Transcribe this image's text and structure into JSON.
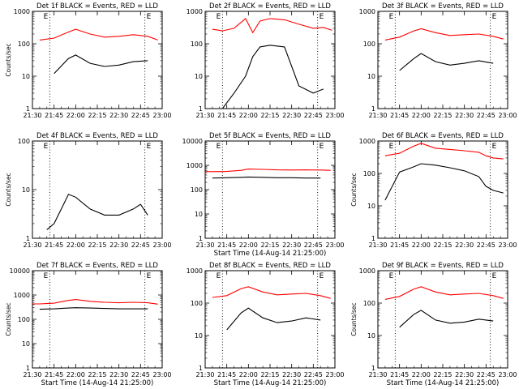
{
  "figure": {
    "x_tick_labels": [
      "21:30",
      "21:45",
      "22:00",
      "22:15",
      "22:30",
      "22:45",
      "23:00"
    ],
    "series_colors": {
      "events": "#000000",
      "lld": "#ff0000"
    },
    "marker": "E"
  },
  "chart_data": [
    {
      "type": "line",
      "title": "Det 1f BLACK = Events, RED = LLD",
      "xlabel": "",
      "ylabel": "Counts/sec",
      "y_scale": "log",
      "ylim": [
        1,
        1000
      ],
      "y_tick_labels": [
        "1",
        "10",
        "100",
        "1000"
      ],
      "xlim": [
        "21:30",
        "23:00"
      ],
      "x": [
        "21:35",
        "21:45",
        "21:55",
        "22:00",
        "22:10",
        "22:20",
        "22:30",
        "22:40",
        "22:50",
        "22:57"
      ],
      "series": [
        {
          "color": "#ff0000",
          "values": [
            130,
            150,
            230,
            280,
            200,
            160,
            170,
            190,
            170,
            130
          ]
        },
        {
          "color": "#000000",
          "values": [
            null,
            12,
            35,
            45,
            25,
            20,
            22,
            28,
            30,
            null
          ]
        }
      ],
      "markers": [
        "21:42",
        "22:48"
      ]
    },
    {
      "type": "line",
      "title": "Det 2f BLACK = Events, RED = LLD",
      "xlabel": "",
      "ylabel": "",
      "y_scale": "log",
      "ylim": [
        1,
        1000
      ],
      "y_tick_labels": [
        "1",
        "10",
        "100",
        "1000"
      ],
      "xlim": [
        "21:30",
        "23:00"
      ],
      "x": [
        "21:35",
        "21:42",
        "21:50",
        "21:58",
        "22:03",
        "22:08",
        "22:15",
        "22:25",
        "22:35",
        "22:45",
        "22:52",
        "22:58"
      ],
      "series": [
        {
          "color": "#ff0000",
          "values": [
            280,
            250,
            300,
            600,
            220,
            500,
            600,
            550,
            400,
            300,
            320,
            260
          ]
        },
        {
          "color": "#000000",
          "values": [
            null,
            1,
            3,
            10,
            40,
            80,
            90,
            80,
            5,
            3,
            4,
            null
          ]
        }
      ],
      "markers": [
        "21:42",
        "22:48"
      ]
    },
    {
      "type": "line",
      "title": "Det 3f BLACK = Events, RED = LLD",
      "xlabel": "",
      "ylabel": "",
      "y_scale": "log",
      "ylim": [
        1,
        1000
      ],
      "y_tick_labels": [
        "1",
        "10",
        "100",
        "1000"
      ],
      "xlim": [
        "21:30",
        "23:00"
      ],
      "x": [
        "21:35",
        "21:45",
        "21:55",
        "22:00",
        "22:10",
        "22:20",
        "22:30",
        "22:40",
        "22:50",
        "22:57"
      ],
      "series": [
        {
          "color": "#ff0000",
          "values": [
            130,
            160,
            250,
            290,
            220,
            180,
            190,
            200,
            170,
            140
          ]
        },
        {
          "color": "#000000",
          "values": [
            null,
            15,
            35,
            50,
            28,
            22,
            25,
            30,
            25,
            null
          ]
        }
      ],
      "markers": [
        "21:42",
        "22:48"
      ]
    },
    {
      "type": "line",
      "title": "Det 4f BLACK = Events, RED = LLD",
      "xlabel": "",
      "ylabel": "Counts/sec",
      "y_scale": "log",
      "ylim": [
        1,
        100
      ],
      "y_tick_labels": [
        "1",
        "10",
        "100"
      ],
      "xlim": [
        "21:30",
        "23:00"
      ],
      "x": [
        "21:40",
        "21:45",
        "21:50",
        "21:55",
        "22:00",
        "22:10",
        "22:20",
        "22:30",
        "22:40",
        "22:45",
        "22:50"
      ],
      "series": [
        {
          "color": "#000000",
          "values": [
            1.5,
            2,
            4,
            8,
            7,
            4,
            3,
            3,
            4,
            5,
            3
          ]
        }
      ],
      "markers": [
        "21:42",
        "22:48"
      ]
    },
    {
      "type": "line",
      "title": "Det 5f BLACK = Events, RED = LLD",
      "xlabel": "Start Time (14-Aug-14 21:25:00)",
      "ylabel": "",
      "y_scale": "log",
      "ylim": [
        1,
        10000
      ],
      "y_tick_labels": [
        "1",
        "10",
        "100",
        "1000",
        "10000"
      ],
      "xlim": [
        "21:30",
        "23:00"
      ],
      "x": [
        "21:30",
        "21:35",
        "21:45",
        "21:55",
        "22:00",
        "22:10",
        "22:20",
        "22:30",
        "22:40",
        "22:50",
        "22:57"
      ],
      "series": [
        {
          "color": "#ff0000",
          "values": [
            560,
            550,
            560,
            620,
            700,
            680,
            650,
            640,
            650,
            640,
            620
          ]
        },
        {
          "color": "#000000",
          "values": [
            null,
            300,
            310,
            320,
            330,
            320,
            310,
            310,
            300,
            300,
            null
          ]
        }
      ],
      "markers": [
        "21:42",
        "22:48"
      ]
    },
    {
      "type": "line",
      "title": "Det 6f BLACK = Events, RED = LLD",
      "xlabel": "",
      "ylabel": "Counts/sec",
      "y_scale": "log",
      "ylim": [
        1,
        1000
      ],
      "y_tick_labels": [
        "1",
        "10",
        "100",
        "1000"
      ],
      "xlim": [
        "21:30",
        "23:00"
      ],
      "x": [
        "21:35",
        "21:45",
        "21:55",
        "22:00",
        "22:10",
        "22:20",
        "22:30",
        "22:40",
        "22:45",
        "22:50",
        "22:57"
      ],
      "series": [
        {
          "color": "#ff0000",
          "values": [
            350,
            420,
            700,
            850,
            600,
            550,
            500,
            450,
            350,
            300,
            280
          ]
        },
        {
          "color": "#000000",
          "values": [
            15,
            110,
            160,
            200,
            180,
            150,
            120,
            80,
            40,
            30,
            25
          ]
        }
      ],
      "markers": [
        "21:42",
        "22:48"
      ]
    },
    {
      "type": "line",
      "title": "Det 7f BLACK = Events, RED = LLD",
      "xlabel": "Start Time (14-Aug-14 21:25:00)",
      "ylabel": "Counts/sec",
      "y_scale": "log",
      "ylim": [
        1,
        10000
      ],
      "y_tick_labels": [
        "1",
        "10",
        "100",
        "1000",
        "10000"
      ],
      "xlim": [
        "21:30",
        "23:00"
      ],
      "x": [
        "21:30",
        "21:35",
        "21:45",
        "21:55",
        "22:00",
        "22:10",
        "22:20",
        "22:30",
        "22:40",
        "22:50",
        "22:57"
      ],
      "series": [
        {
          "color": "#ff0000",
          "values": [
            430,
            430,
            460,
            600,
            650,
            550,
            500,
            480,
            500,
            480,
            420
          ]
        },
        {
          "color": "#000000",
          "values": [
            null,
            260,
            270,
            290,
            300,
            290,
            280,
            270,
            270,
            270,
            null
          ]
        }
      ],
      "markers": [
        "21:42",
        "22:48"
      ]
    },
    {
      "type": "line",
      "title": "Det 8f BLACK = Events, RED = LLD",
      "xlabel": "Start Time (14-Aug-14 21:25:00)",
      "ylabel": "",
      "y_scale": "log",
      "ylim": [
        1,
        1000
      ],
      "y_tick_labels": [
        "1",
        "10",
        "100",
        "1000"
      ],
      "xlim": [
        "21:30",
        "23:00"
      ],
      "x": [
        "21:35",
        "21:45",
        "21:55",
        "22:00",
        "22:10",
        "22:20",
        "22:30",
        "22:40",
        "22:50",
        "22:57"
      ],
      "series": [
        {
          "color": "#ff0000",
          "values": [
            150,
            170,
            280,
            320,
            220,
            180,
            190,
            200,
            170,
            140
          ]
        },
        {
          "color": "#000000",
          "values": [
            null,
            15,
            50,
            70,
            35,
            25,
            28,
            35,
            30,
            null
          ]
        }
      ],
      "markers": [
        "21:42",
        "22:48"
      ]
    },
    {
      "type": "line",
      "title": "Det 9f BLACK = Events, RED = LLD",
      "xlabel": "Start Time (14-Aug-14 21:25:00)",
      "ylabel": "Counts/sec",
      "y_scale": "log",
      "ylim": [
        1,
        1000
      ],
      "y_tick_labels": [
        "1",
        "10",
        "100",
        "1000"
      ],
      "xlim": [
        "21:30",
        "23:00"
      ],
      "x": [
        "21:35",
        "21:45",
        "21:55",
        "22:00",
        "22:10",
        "22:20",
        "22:30",
        "22:40",
        "22:50",
        "22:57"
      ],
      "series": [
        {
          "color": "#ff0000",
          "values": [
            130,
            160,
            270,
            320,
            220,
            180,
            190,
            200,
            170,
            140
          ]
        },
        {
          "color": "#000000",
          "values": [
            null,
            18,
            45,
            60,
            30,
            24,
            26,
            32,
            28,
            null
          ]
        }
      ],
      "markers": [
        "21:42",
        "22:48"
      ]
    }
  ]
}
